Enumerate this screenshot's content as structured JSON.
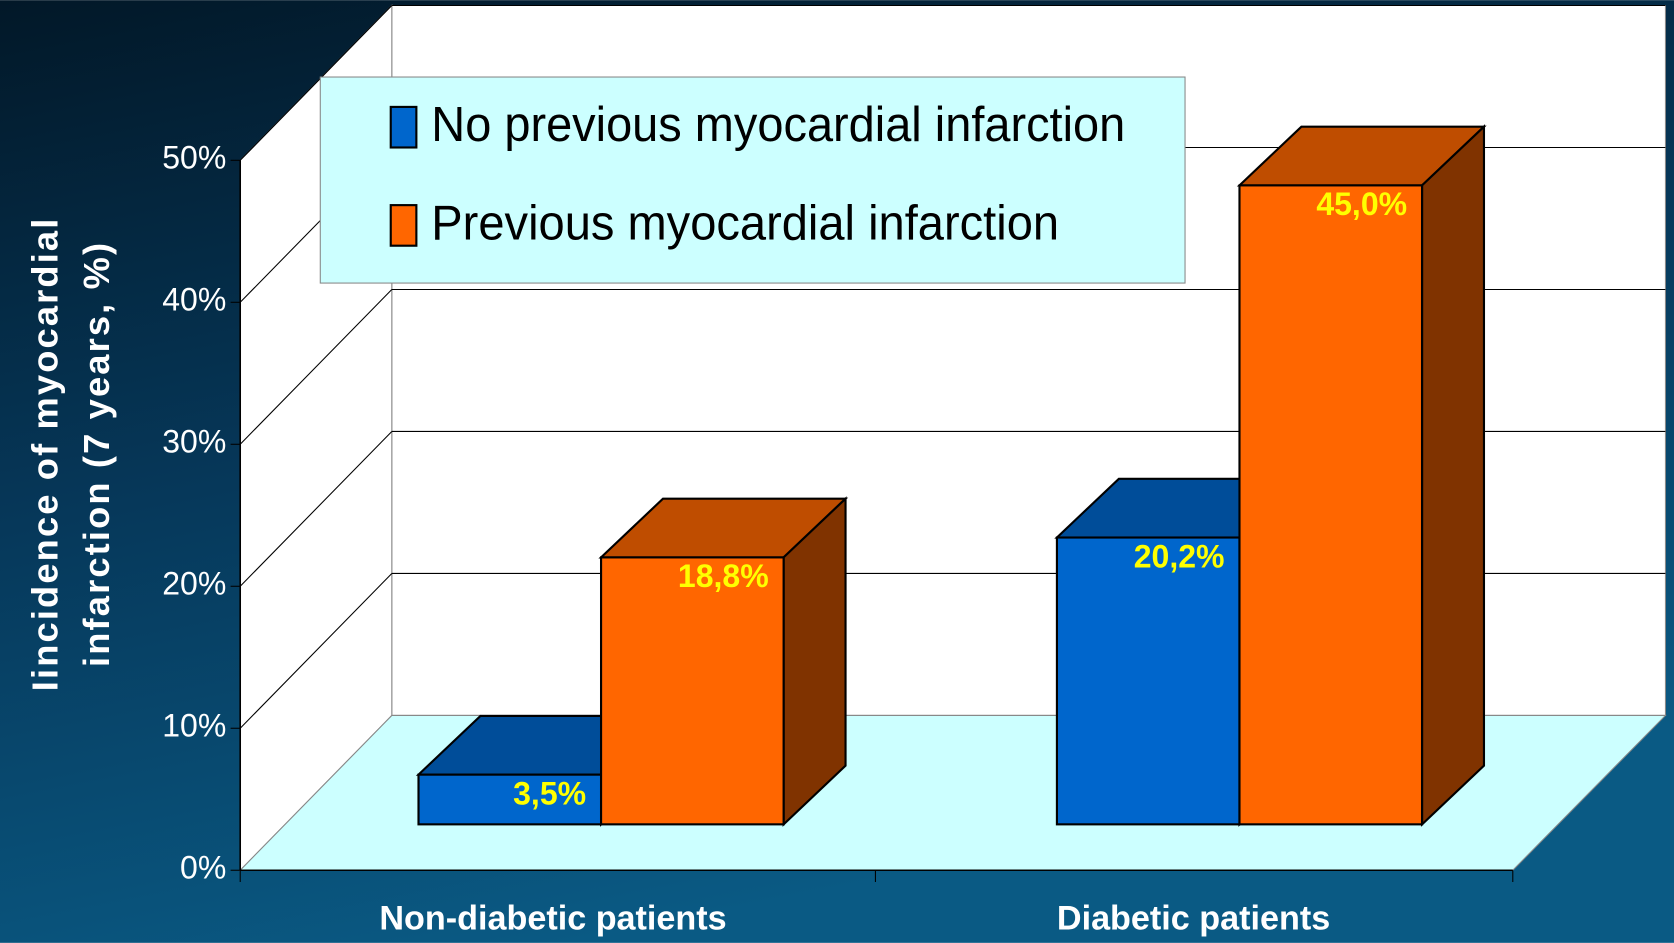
{
  "chart_data": {
    "type": "bar3d",
    "y_label": [
      "Iincidence of myocardial",
      "infarction (7 years, %)"
    ],
    "categories": [
      "Non-diabetic patients",
      "Diabetic patients"
    ],
    "series": [
      {
        "name": "No previous myocardial infarction",
        "color": "#0066cc",
        "values": [
          3.5,
          20.2
        ],
        "value_labels": [
          "3,5%",
          "20,2%"
        ]
      },
      {
        "name": "Previous myocardial infarction",
        "color": "#ff6600",
        "values": [
          18.8,
          45.0
        ],
        "value_labels": [
          "18,8%",
          "45,0%"
        ]
      }
    ],
    "ylim": [
      0,
      50
    ],
    "yticks": [
      {
        "value": 0,
        "label": "0%"
      },
      {
        "value": 10,
        "label": "10%"
      },
      {
        "value": 20,
        "label": "20%"
      },
      {
        "value": 30,
        "label": "30%"
      },
      {
        "value": 40,
        "label": "40%"
      },
      {
        "value": 50,
        "label": "50%"
      }
    ],
    "grid": true,
    "legend": "top-left",
    "value_label_color": "#ffff00"
  }
}
